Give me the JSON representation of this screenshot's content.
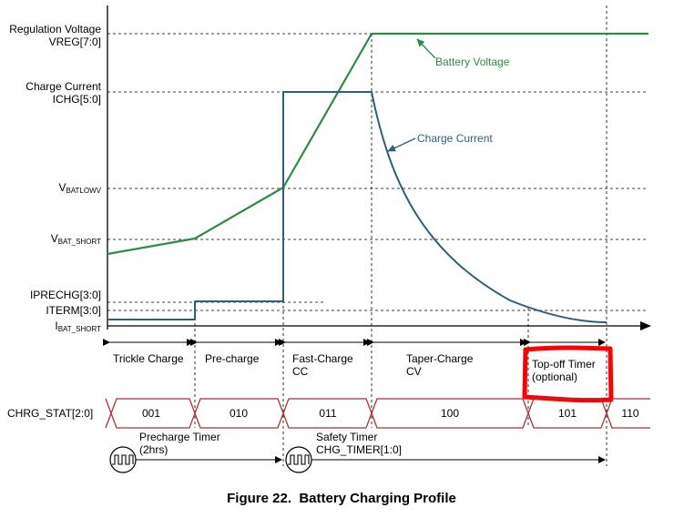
{
  "y_labels": {
    "vreg_line1": "Regulation Voltage",
    "vreg_line2": "VREG[7:0]",
    "ichg_line1": "Charge Current",
    "ichg_line2": "ICHG[5:0]",
    "vbatlowv_main": "V",
    "vbatlowv_sub": "BATLOWV",
    "vbatshort_main": "V",
    "vbatshort_sub": "BAT_SHORT",
    "iprechg": "IPRECHG[3:0]",
    "iterm": "ITERM[3:0]",
    "ibatshort_main": "I",
    "ibatshort_sub": "BAT_SHORT"
  },
  "curve_labels": {
    "battery_voltage": "Battery Voltage",
    "charge_current": "Charge Current"
  },
  "phases": {
    "trickle": "Trickle Charge",
    "precharge": "Pre-charge",
    "fastcharge_line1": "Fast-Charge",
    "fastcharge_line2": "CC",
    "taper_line1": "Taper-Charge",
    "taper_line2": "CV",
    "topoff_line1": "Top-off Timer",
    "topoff_line2": "(optional)"
  },
  "status": {
    "label": "CHRG_STAT[2:0]",
    "codes": [
      "001",
      "010",
      "011",
      "100",
      "101",
      "110"
    ]
  },
  "timers": {
    "precharge_line1": "Precharge Timer",
    "precharge_line2": "(2hrs)",
    "safety_line1": "Safety Timer",
    "safety_line2": "CHG_TIMER[1:0]"
  },
  "caption": "Figure 22.  Battery Charging Profile",
  "colors": {
    "voltage": "#2e8b46",
    "current": "#2f5f7a",
    "status_bus": "#a8323a",
    "highlight": "#ff0000",
    "axis": "#000000"
  }
}
